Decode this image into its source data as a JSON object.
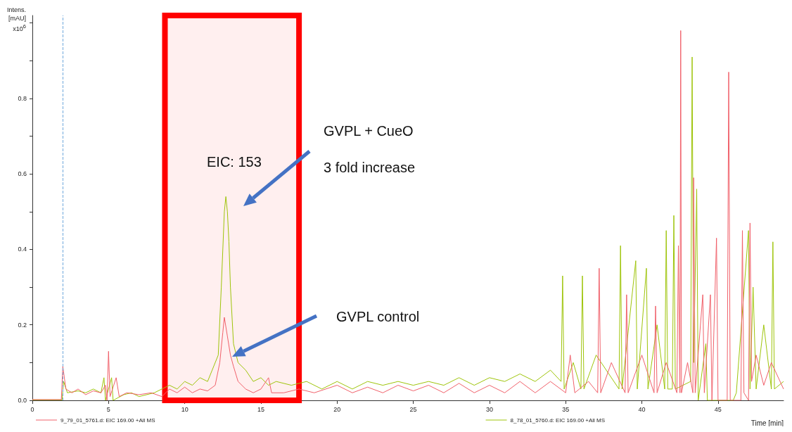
{
  "chart_data": {
    "type": "line",
    "xlabel": "Time [min]",
    "ylabel": "Intens.\n[mAU]\nx10$^{6}$",
    "annotations": [
      "EIC: 153",
      "GVPL + CueO",
      "3 fold increase",
      "GVPL control"
    ],
    "legend": "bottom",
    "grid": false,
    "marker": "none",
    "line_style": "solid",
    "xlim": [
      0,
      49.3
    ],
    "xticks": [
      0,
      5,
      10,
      15,
      20,
      25,
      30,
      35,
      40,
      45
    ],
    "ylim": [
      0,
      1.02
    ],
    "yticks": [
      {
        "value": 0,
        "label": "0.0"
      },
      {
        "value": 0.1,
        "label": null
      },
      {
        "value": 0.2,
        "label": "0.2"
      },
      {
        "value": 0.3,
        "label": null
      },
      {
        "value": 0.4,
        "label": "0.4"
      },
      {
        "value": 0.5,
        "label": null
      },
      {
        "value": 0.6,
        "label": "0.6"
      },
      {
        "value": 0.7,
        "label": null
      },
      {
        "value": 0.8,
        "label": "0.8"
      },
      {
        "value": 0.9,
        "label": null
      },
      {
        "value": 1.0,
        "label": null
      }
    ],
    "ref_lines": [
      {
        "axis": "x",
        "value": 2,
        "color": "#6fa8dc",
        "line_style": "dashed"
      }
    ],
    "bands": [
      {
        "axis": "x",
        "from": 8.7,
        "to": 17.5,
        "color": "#ff0000"
      }
    ],
    "series": [
      {
        "name": "9_79_01_5761.d: EIC 169.00 +All MS",
        "color": "#f0606a",
        "x": [
          0,
          1.9,
          2.0,
          2.2,
          2.6,
          3.0,
          3.5,
          4.0,
          4.5,
          4.8,
          4.9,
          5.0,
          5.1,
          5.5,
          5.7,
          6.2,
          7.0,
          7.8,
          8.5,
          9.0,
          9.5,
          10.0,
          10.5,
          11.0,
          11.5,
          12.0,
          12.3,
          12.5,
          12.6,
          12.8,
          13.0,
          13.2,
          13.5,
          14.0,
          14.5,
          15.0,
          15.5,
          15.7,
          16.5,
          17.5,
          18.5,
          20,
          21,
          22,
          23,
          24,
          25,
          26,
          27,
          28,
          29,
          30,
          31,
          32,
          33,
          34,
          35,
          35.3,
          35.6,
          36.5,
          37.1,
          37.2,
          37.3,
          38,
          38.9,
          39.0,
          39.1,
          40,
          40.8,
          40.9,
          41.0,
          41.6,
          42.3,
          42.4,
          42.5,
          42.55,
          42.6,
          43.0,
          43.35,
          43.4,
          43.5,
          44.0,
          44.1,
          44.5,
          44.6,
          44.9,
          45.0,
          45.6,
          45.7,
          45.8,
          46.5,
          46.6,
          46.7,
          47.0,
          47.1,
          47.2,
          47.5,
          48,
          48.5,
          49.3
        ],
        "values": [
          0.002,
          0.002,
          0.09,
          0.03,
          0.02,
          0.03,
          0.015,
          0.025,
          0.02,
          0.04,
          0.0,
          0.13,
          0.01,
          0.06,
          0.01,
          0.02,
          0.015,
          0.02,
          0.01,
          0.03,
          0.02,
          0.035,
          0.02,
          0.03,
          0.025,
          0.04,
          0.1,
          0.18,
          0.22,
          0.17,
          0.12,
          0.09,
          0.05,
          0.03,
          0.02,
          0.03,
          0.06,
          0.02,
          0.02,
          0.03,
          0.02,
          0.04,
          0.02,
          0.035,
          0.02,
          0.04,
          0.025,
          0.04,
          0.02,
          0.045,
          0.02,
          0.04,
          0.02,
          0.05,
          0.02,
          0.05,
          0.02,
          0.12,
          0.02,
          0.05,
          0.02,
          0.35,
          0.02,
          0.1,
          0.02,
          0.28,
          0.02,
          0.12,
          0.02,
          0.25,
          0.02,
          0.1,
          0.02,
          0.41,
          0.02,
          0.98,
          0.02,
          0.1,
          0.02,
          0.59,
          0.02,
          0.28,
          0.02,
          0.28,
          0.0,
          0.43,
          0.0,
          0.0,
          0.87,
          0.0,
          0.0,
          0.45,
          0.02,
          0.0,
          0.47,
          0.05,
          0.12,
          0.04,
          0.1,
          0.03
        ]
      },
      {
        "name": "8_78_01_5760.d: EIC 169.00 +All MS",
        "color": "#9ec40a",
        "x": [
          0,
          1.95,
          2.05,
          2.3,
          3.0,
          3.5,
          4.0,
          4.5,
          4.7,
          4.8,
          5.2,
          5.3,
          6.0,
          6.5,
          7,
          8,
          8.5,
          9,
          9.5,
          10,
          10.5,
          11,
          11.5,
          11.8,
          12.2,
          12.4,
          12.6,
          12.7,
          12.8,
          12.9,
          13.0,
          13.2,
          13.5,
          14,
          14.5,
          15,
          15.5,
          16,
          17,
          18,
          19,
          20,
          21,
          22,
          23,
          24,
          25,
          26,
          27,
          28,
          29,
          30,
          31,
          32,
          33,
          34,
          34.7,
          34.8,
          34.9,
          35.5,
          36.0,
          36.1,
          36.2,
          37,
          38.5,
          38.6,
          38.7,
          39.6,
          39.7,
          40.3,
          40.4,
          41,
          41.5,
          41.6,
          41.7,
          42.0,
          42.1,
          42.2,
          43.2,
          43.3,
          43.4,
          43.6,
          43.7,
          44.2,
          44.3,
          46.0,
          46.2,
          47.0,
          47.1,
          47.3,
          47.5,
          48,
          48.5,
          48.6,
          48.7,
          49.3
        ],
        "values": [
          0.001,
          0.001,
          0.05,
          0.02,
          0.025,
          0.02,
          0.03,
          0.02,
          0.06,
          0.0,
          0.06,
          0.0,
          0.015,
          0.02,
          0.01,
          0.02,
          0.03,
          0.04,
          0.03,
          0.05,
          0.04,
          0.06,
          0.05,
          0.08,
          0.12,
          0.3,
          0.5,
          0.54,
          0.5,
          0.42,
          0.3,
          0.15,
          0.1,
          0.08,
          0.05,
          0.06,
          0.04,
          0.05,
          0.04,
          0.05,
          0.03,
          0.05,
          0.03,
          0.05,
          0.04,
          0.05,
          0.04,
          0.05,
          0.04,
          0.06,
          0.04,
          0.06,
          0.05,
          0.07,
          0.05,
          0.08,
          0.05,
          0.33,
          0.03,
          0.1,
          0.03,
          0.33,
          0.03,
          0.12,
          0.03,
          0.41,
          0.03,
          0.37,
          0.03,
          0.35,
          0.03,
          0.2,
          0.03,
          0.45,
          0.03,
          0.03,
          0.49,
          0.03,
          0.05,
          0.91,
          0.1,
          0.56,
          0.0,
          0.15,
          0.0,
          0.0,
          0.02,
          0.45,
          0.03,
          0.3,
          0.03,
          0.2,
          0.03,
          0.42,
          0.03,
          0.05
        ]
      }
    ]
  }
}
